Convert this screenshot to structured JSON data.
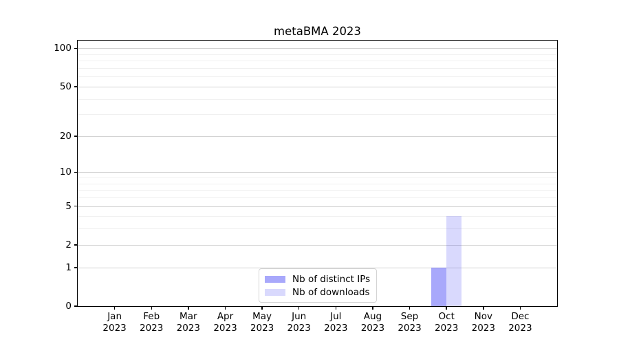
{
  "title": "metaBMA 2023",
  "chart_data": {
    "type": "bar",
    "title": "metaBMA 2023",
    "categories": [
      "Jan",
      "Feb",
      "Mar",
      "Apr",
      "May",
      "Jun",
      "Jul",
      "Aug",
      "Sep",
      "Oct",
      "Nov",
      "Dec"
    ],
    "x_tick_year": "2023",
    "series": [
      {
        "name": "Nb of distinct IPs",
        "color": "rgba(20,20,245,0.37)",
        "values": [
          0,
          0,
          0,
          0,
          0,
          0,
          0,
          0,
          0,
          1,
          0,
          0
        ]
      },
      {
        "name": "Nb of downloads",
        "color": "rgba(20,20,245,0.16)",
        "values": [
          0,
          0,
          0,
          0,
          0,
          0,
          0,
          0,
          0,
          4,
          0,
          0
        ]
      }
    ],
    "xlabel": "",
    "ylabel": "",
    "yscale": "log1p",
    "ylim": [
      0,
      115
    ],
    "y_major_ticks": [
      0,
      1,
      2,
      5,
      10,
      20,
      50,
      100
    ],
    "y_minor_gridlines": [
      3,
      4,
      6,
      7,
      8,
      9,
      30,
      40,
      60,
      70,
      80,
      90
    ],
    "grid": true,
    "legend_position": "lower center inside"
  }
}
